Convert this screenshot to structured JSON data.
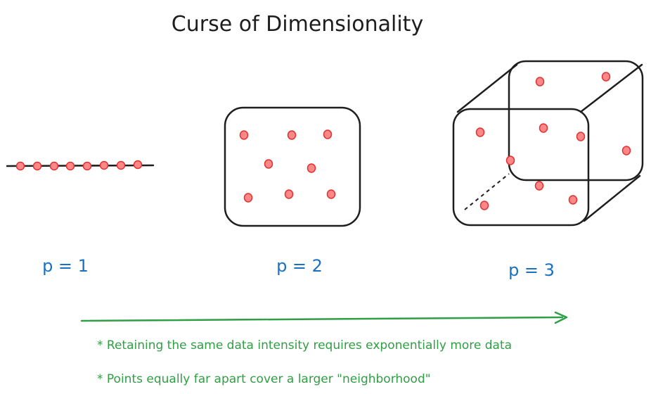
{
  "title": "Curse of Dimensionality",
  "panels": [
    {
      "id": "p1",
      "label": "p = 1"
    },
    {
      "id": "p2",
      "label": "p = 2"
    },
    {
      "id": "p3",
      "label": "p = 3"
    }
  ],
  "notes": [
    "* Retaining the same data intensity requires exponentially more data",
    "* Points equally far apart cover a larger \"neighborhood\""
  ],
  "colors": {
    "ink": "#1e1e1e",
    "label_blue": "#1971c2",
    "note_green": "#2f9e44",
    "point_fill": "#ff8787",
    "point_stroke": "#e03131"
  }
}
